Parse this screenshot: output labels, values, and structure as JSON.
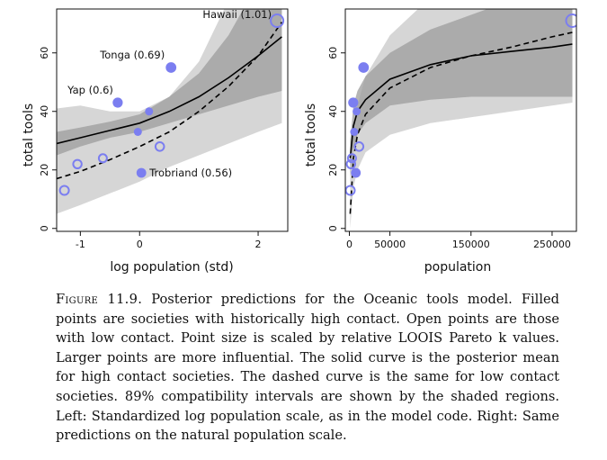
{
  "chart_data": [
    {
      "type": "scatter",
      "panel": "left",
      "xlabel": "log population (std)",
      "ylabel": "total tools",
      "xlim": [
        -1.4,
        2.5
      ],
      "ylim": [
        -1,
        75
      ],
      "xticks": [
        -1,
        0,
        2
      ],
      "yticks": [
        0,
        20,
        40,
        60
      ],
      "colors": {
        "high_contact": "#7b7ef0",
        "low_contact": "#7b7ef0",
        "interval_high": "#9c9c9c",
        "interval_low": "#d6d6d6"
      },
      "series": [
        {
          "name": "high contact",
          "line": "solid",
          "x": [
            -1.4,
            -1.0,
            -0.5,
            0.0,
            0.5,
            1.0,
            1.5,
            2.0,
            2.4
          ],
          "y": [
            29,
            31,
            33.5,
            36,
            40,
            45,
            51.5,
            59,
            65.5
          ],
          "lower": [
            25,
            28,
            31,
            33,
            36,
            39,
            42,
            45,
            47
          ],
          "upper": [
            33,
            34.5,
            36.5,
            39,
            45,
            53,
            66,
            84,
            100
          ]
        },
        {
          "name": "low contact",
          "line": "dashed",
          "x": [
            -1.4,
            -1.0,
            -0.5,
            0.0,
            0.5,
            1.0,
            1.5,
            2.0,
            2.4
          ],
          "y": [
            17,
            19.5,
            23.5,
            28,
            33,
            40,
            48.5,
            59,
            70.5
          ],
          "lower": [
            5,
            8,
            12,
            16,
            21,
            25,
            29,
            33,
            36
          ],
          "upper": [
            41,
            42,
            40,
            40,
            45,
            57,
            78,
            110,
            150
          ]
        }
      ],
      "points": [
        {
          "x": 2.32,
          "y": 71,
          "filled": false,
          "size": 1.01,
          "label": "Hawaii (1.01)"
        },
        {
          "x": 0.53,
          "y": 55,
          "filled": true,
          "size": 0.69,
          "label": "Tonga (0.69)"
        },
        {
          "x": -0.37,
          "y": 43,
          "filled": true,
          "size": 0.6,
          "label": "Yap (0.6)"
        },
        {
          "x": 0.03,
          "y": 19,
          "filled": true,
          "size": 0.56,
          "label": "Trobriand (0.56)"
        },
        {
          "x": 0.16,
          "y": 40,
          "filled": true,
          "size": 0.3,
          "label": ""
        },
        {
          "x": -0.03,
          "y": 33,
          "filled": true,
          "size": 0.3,
          "label": ""
        },
        {
          "x": -1.27,
          "y": 13,
          "filled": false,
          "size": 0.45,
          "label": ""
        },
        {
          "x": -1.05,
          "y": 22,
          "filled": false,
          "size": 0.35,
          "label": ""
        },
        {
          "x": -0.62,
          "y": 24,
          "filled": false,
          "size": 0.3,
          "label": ""
        },
        {
          "x": 0.34,
          "y": 28,
          "filled": false,
          "size": 0.4,
          "label": ""
        }
      ]
    },
    {
      "type": "scatter",
      "panel": "right",
      "xlabel": "population",
      "ylabel": "total tools",
      "xlim": [
        -5000,
        280000
      ],
      "ylim": [
        -1,
        75
      ],
      "xticks": [
        0,
        50000,
        150000,
        250000
      ],
      "yticks": [
        0,
        20,
        40,
        60
      ],
      "colors": {
        "high_contact": "#7b7ef0",
        "low_contact": "#7b7ef0",
        "interval_high": "#9c9c9c",
        "interval_low": "#d6d6d6"
      },
      "series": [
        {
          "name": "high contact",
          "line": "solid",
          "x": [
            1000,
            5000,
            10000,
            20000,
            50000,
            100000,
            150000,
            200000,
            250000,
            275000
          ],
          "y": [
            24,
            35,
            40,
            44,
            51,
            56,
            59,
            60.5,
            62,
            63
          ],
          "lower": [
            18,
            27,
            32,
            36,
            42,
            44,
            45,
            45,
            45,
            45
          ],
          "upper": [
            30,
            42,
            47,
            52,
            60,
            68,
            73,
            78,
            80,
            82
          ]
        },
        {
          "name": "low contact",
          "line": "dashed",
          "x": [
            1000,
            5000,
            10000,
            20000,
            50000,
            100000,
            150000,
            200000,
            250000,
            275000
          ],
          "y": [
            5,
            24,
            32,
            39,
            48,
            55,
            59,
            62,
            65.5,
            67
          ],
          "lower": [
            0,
            14,
            20,
            26,
            32,
            36,
            38,
            40,
            42,
            43
          ],
          "upper": [
            18,
            34,
            42,
            52,
            66,
            79,
            88,
            95,
            100,
            105
          ]
        }
      ],
      "points": [
        {
          "x": 275000,
          "y": 71,
          "filled": false,
          "size": 1.01,
          "label": ""
        },
        {
          "x": 17500,
          "y": 55,
          "filled": true,
          "size": 0.69,
          "label": ""
        },
        {
          "x": 4800,
          "y": 43,
          "filled": true,
          "size": 0.6,
          "label": ""
        },
        {
          "x": 8000,
          "y": 19,
          "filled": true,
          "size": 0.56,
          "label": ""
        },
        {
          "x": 9000,
          "y": 40,
          "filled": true,
          "size": 0.3,
          "label": ""
        },
        {
          "x": 6000,
          "y": 33,
          "filled": true,
          "size": 0.3,
          "label": ""
        },
        {
          "x": 1100,
          "y": 13,
          "filled": false,
          "size": 0.45,
          "label": ""
        },
        {
          "x": 2000,
          "y": 22,
          "filled": false,
          "size": 0.35,
          "label": ""
        },
        {
          "x": 3200,
          "y": 24,
          "filled": false,
          "size": 0.3,
          "label": ""
        },
        {
          "x": 12000,
          "y": 28,
          "filled": false,
          "size": 0.4,
          "label": ""
        }
      ]
    }
  ],
  "caption": {
    "lead": "Figure 11.9.",
    "text": "Posterior predictions for the Oceanic tools model. Filled points are societies with historically high contact. Open points are those with low contact. Point size is scaled by relative LOOIS Pareto k values. Larger points are more influential. The solid curve is the posterior mean for high contact societies. The dashed curve is the same for low contact societies. 89% compatibility intervals are shown by the shaded regions. Left: Standardized log population scale, as in the model code. Right: Same predictions on the natural population scale."
  }
}
